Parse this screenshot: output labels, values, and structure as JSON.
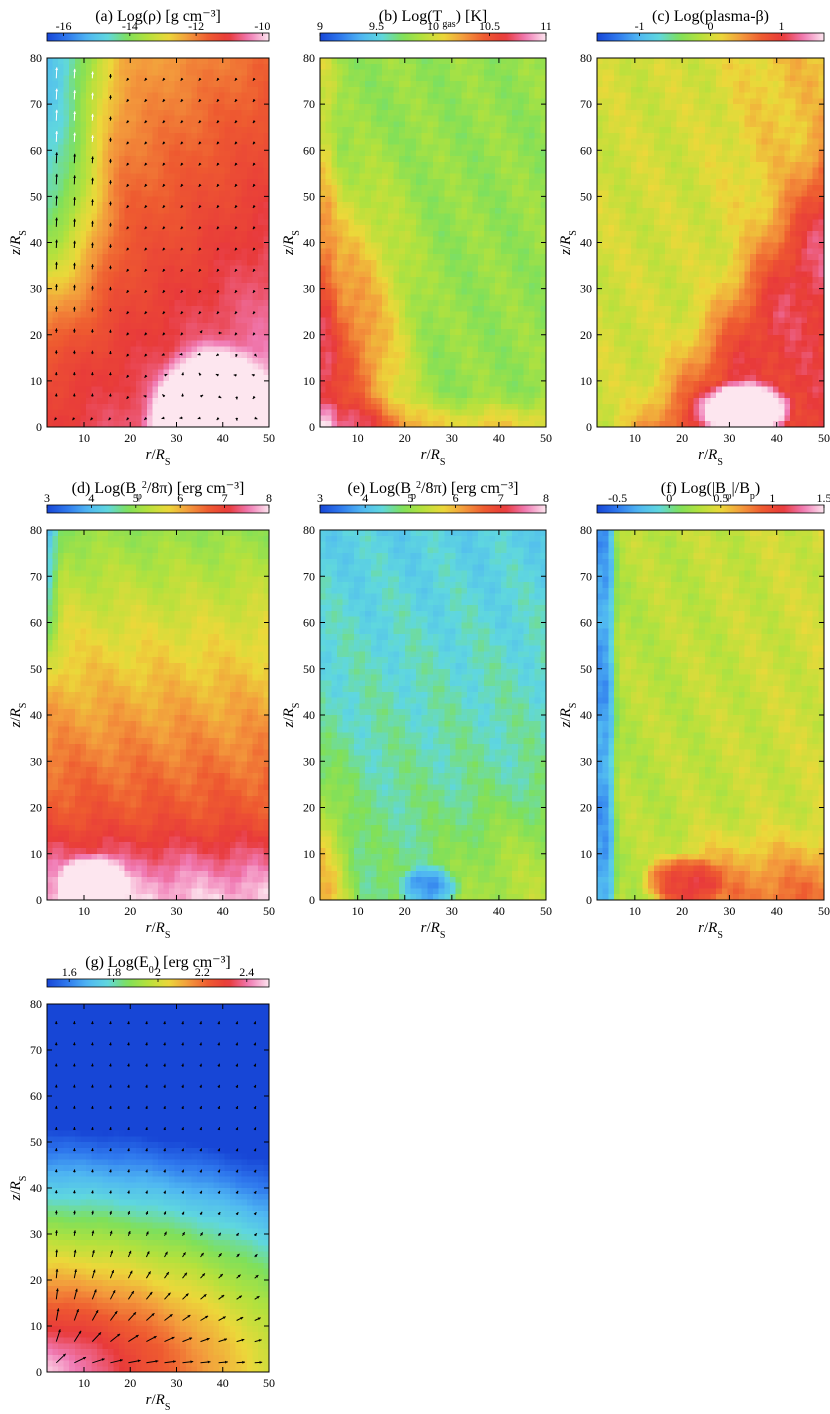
{
  "chart_data": [
    {
      "type": "heatmap",
      "panel_label": "(a)",
      "title": "Log(ρ) [g cm⁻³]",
      "colorbar": {
        "min": -16.5,
        "max": -9.8,
        "ticks": [
          -16,
          -14,
          -12,
          -10
        ],
        "tick_labels": [
          "-16",
          "-14",
          "-12",
          "-10"
        ]
      },
      "field": {
        "kind": "rho"
      },
      "vectors": "velocity",
      "xlabel": "r/R",
      "xlabel_sub": "S",
      "ylabel": "z/R",
      "ylabel_sub": "S",
      "xlim": [
        2,
        50
      ],
      "ylim": [
        0,
        80
      ],
      "xticks": [
        10,
        20,
        30,
        40,
        50
      ],
      "yticks": [
        0,
        10,
        20,
        30,
        40,
        50,
        60,
        70,
        80
      ],
      "show_xlabel": true,
      "show_ylabel": true
    },
    {
      "type": "heatmap",
      "panel_label": "(b)",
      "title": "Log(T",
      "title_sub": "gas",
      "title_end": ") [K]",
      "colorbar": {
        "min": 9.0,
        "max": 11.0,
        "ticks": [
          9,
          9.5,
          10,
          10.5,
          11
        ],
        "tick_labels": [
          "9",
          "9.5",
          "10",
          "10.5",
          "11"
        ]
      },
      "field": {
        "kind": "tgas"
      },
      "xlabel": "r/R",
      "xlabel_sub": "S",
      "ylabel": "z/R",
      "ylabel_sub": "S",
      "xlim": [
        2,
        50
      ],
      "ylim": [
        0,
        80
      ],
      "xticks": [
        10,
        20,
        30,
        40,
        50
      ],
      "yticks": [
        0,
        10,
        20,
        30,
        40,
        50,
        60,
        70,
        80
      ],
      "show_xlabel": true,
      "show_ylabel": true
    },
    {
      "type": "heatmap",
      "panel_label": "(c)",
      "title": "Log(plasma-β)",
      "colorbar": {
        "min": -1.6,
        "max": 1.6,
        "ticks": [
          -1,
          0,
          1
        ],
        "tick_labels": [
          "-1",
          "0",
          "1"
        ]
      },
      "field": {
        "kind": "beta"
      },
      "xlabel": "r/R",
      "xlabel_sub": "S",
      "ylabel": "z/R",
      "ylabel_sub": "S",
      "xlim": [
        2,
        50
      ],
      "ylim": [
        0,
        80
      ],
      "xticks": [
        10,
        20,
        30,
        40,
        50
      ],
      "yticks": [
        0,
        10,
        20,
        30,
        40,
        50,
        60,
        70,
        80
      ],
      "show_xlabel": true,
      "show_ylabel": true
    },
    {
      "type": "heatmap",
      "panel_label": "(d)",
      "title": "Log(B",
      "title_sub": "φ",
      "title_sup": "2",
      "title_end": "/8π) [erg cm⁻³]",
      "colorbar": {
        "min": 3.0,
        "max": 8.0,
        "ticks": [
          3,
          4,
          5,
          6,
          7,
          8
        ],
        "tick_labels": [
          "3",
          "4",
          "5",
          "6",
          "7",
          "8"
        ]
      },
      "field": {
        "kind": "bphi"
      },
      "xlabel": "r/R",
      "xlabel_sub": "S",
      "ylabel": "z/R",
      "ylabel_sub": "S",
      "xlim": [
        2,
        50
      ],
      "ylim": [
        0,
        80
      ],
      "xticks": [
        10,
        20,
        30,
        40,
        50
      ],
      "yticks": [
        0,
        10,
        20,
        30,
        40,
        50,
        60,
        70,
        80
      ],
      "show_xlabel": true,
      "show_ylabel": true
    },
    {
      "type": "heatmap",
      "panel_label": "(e)",
      "title": "Log(B",
      "title_sub": "p",
      "title_sup": "2",
      "title_end": "/8π) [erg cm⁻³]",
      "colorbar": {
        "min": 3.0,
        "max": 8.0,
        "ticks": [
          3,
          4,
          5,
          6,
          7,
          8
        ],
        "tick_labels": [
          "3",
          "4",
          "5",
          "6",
          "7",
          "8"
        ]
      },
      "field": {
        "kind": "bp"
      },
      "xlabel": "r/R",
      "xlabel_sub": "S",
      "ylabel": "z/R",
      "ylabel_sub": "S",
      "xlim": [
        2,
        50
      ],
      "ylim": [
        0,
        80
      ],
      "xticks": [
        10,
        20,
        30,
        40,
        50
      ],
      "yticks": [
        0,
        10,
        20,
        30,
        40,
        50,
        60,
        70,
        80
      ],
      "show_xlabel": true,
      "show_ylabel": true
    },
    {
      "type": "heatmap",
      "panel_label": "(f)",
      "title": "Log(|B",
      "title_sub": "φ",
      "title_end": "|/B",
      "title_sub2": "p",
      "title_end2": ")",
      "colorbar": {
        "min": -0.7,
        "max": 1.5,
        "ticks": [
          -0.5,
          0,
          0.5,
          1,
          1.5
        ],
        "tick_labels": [
          "-0.5",
          "0",
          "0.5",
          "1",
          "1.5"
        ]
      },
      "field": {
        "kind": "ratio"
      },
      "xlabel": "r/R",
      "xlabel_sub": "S",
      "ylabel": "z/R",
      "ylabel_sub": "S",
      "xlim": [
        2,
        50
      ],
      "ylim": [
        0,
        80
      ],
      "xticks": [
        10,
        20,
        30,
        40,
        50
      ],
      "yticks": [
        0,
        10,
        20,
        30,
        40,
        50,
        60,
        70,
        80
      ],
      "show_xlabel": true,
      "show_ylabel": true
    },
    {
      "type": "heatmap",
      "panel_label": "(g)",
      "title": "Log(E",
      "title_sub": "0",
      "title_end": ") [erg cm⁻³]",
      "colorbar": {
        "min": 1.5,
        "max": 2.5,
        "ticks": [
          1.6,
          1.8,
          2,
          2.2,
          2.4
        ],
        "tick_labels": [
          "1.6",
          "1.8",
          "2",
          "2.2",
          "2.4"
        ]
      },
      "field": {
        "kind": "e0"
      },
      "vectors": "radiative flux",
      "xlabel": "r/R",
      "xlabel_sub": "S",
      "ylabel": "z/R",
      "ylabel_sub": "S",
      "xlim": [
        2,
        50
      ],
      "ylim": [
        0,
        80
      ],
      "xticks": [
        10,
        20,
        30,
        40,
        50
      ],
      "yticks": [
        0,
        10,
        20,
        30,
        40,
        50,
        60,
        70,
        80
      ],
      "show_xlabel": true,
      "show_ylabel": true
    }
  ],
  "colormap": [
    "#1746d6",
    "#2f79ee",
    "#4fb6f2",
    "#5fd7df",
    "#7fe05a",
    "#b6e13c",
    "#ecd83a",
    "#f39a3c",
    "#ee5a30",
    "#e83a3a",
    "#f07ab4",
    "#fde6ef"
  ]
}
